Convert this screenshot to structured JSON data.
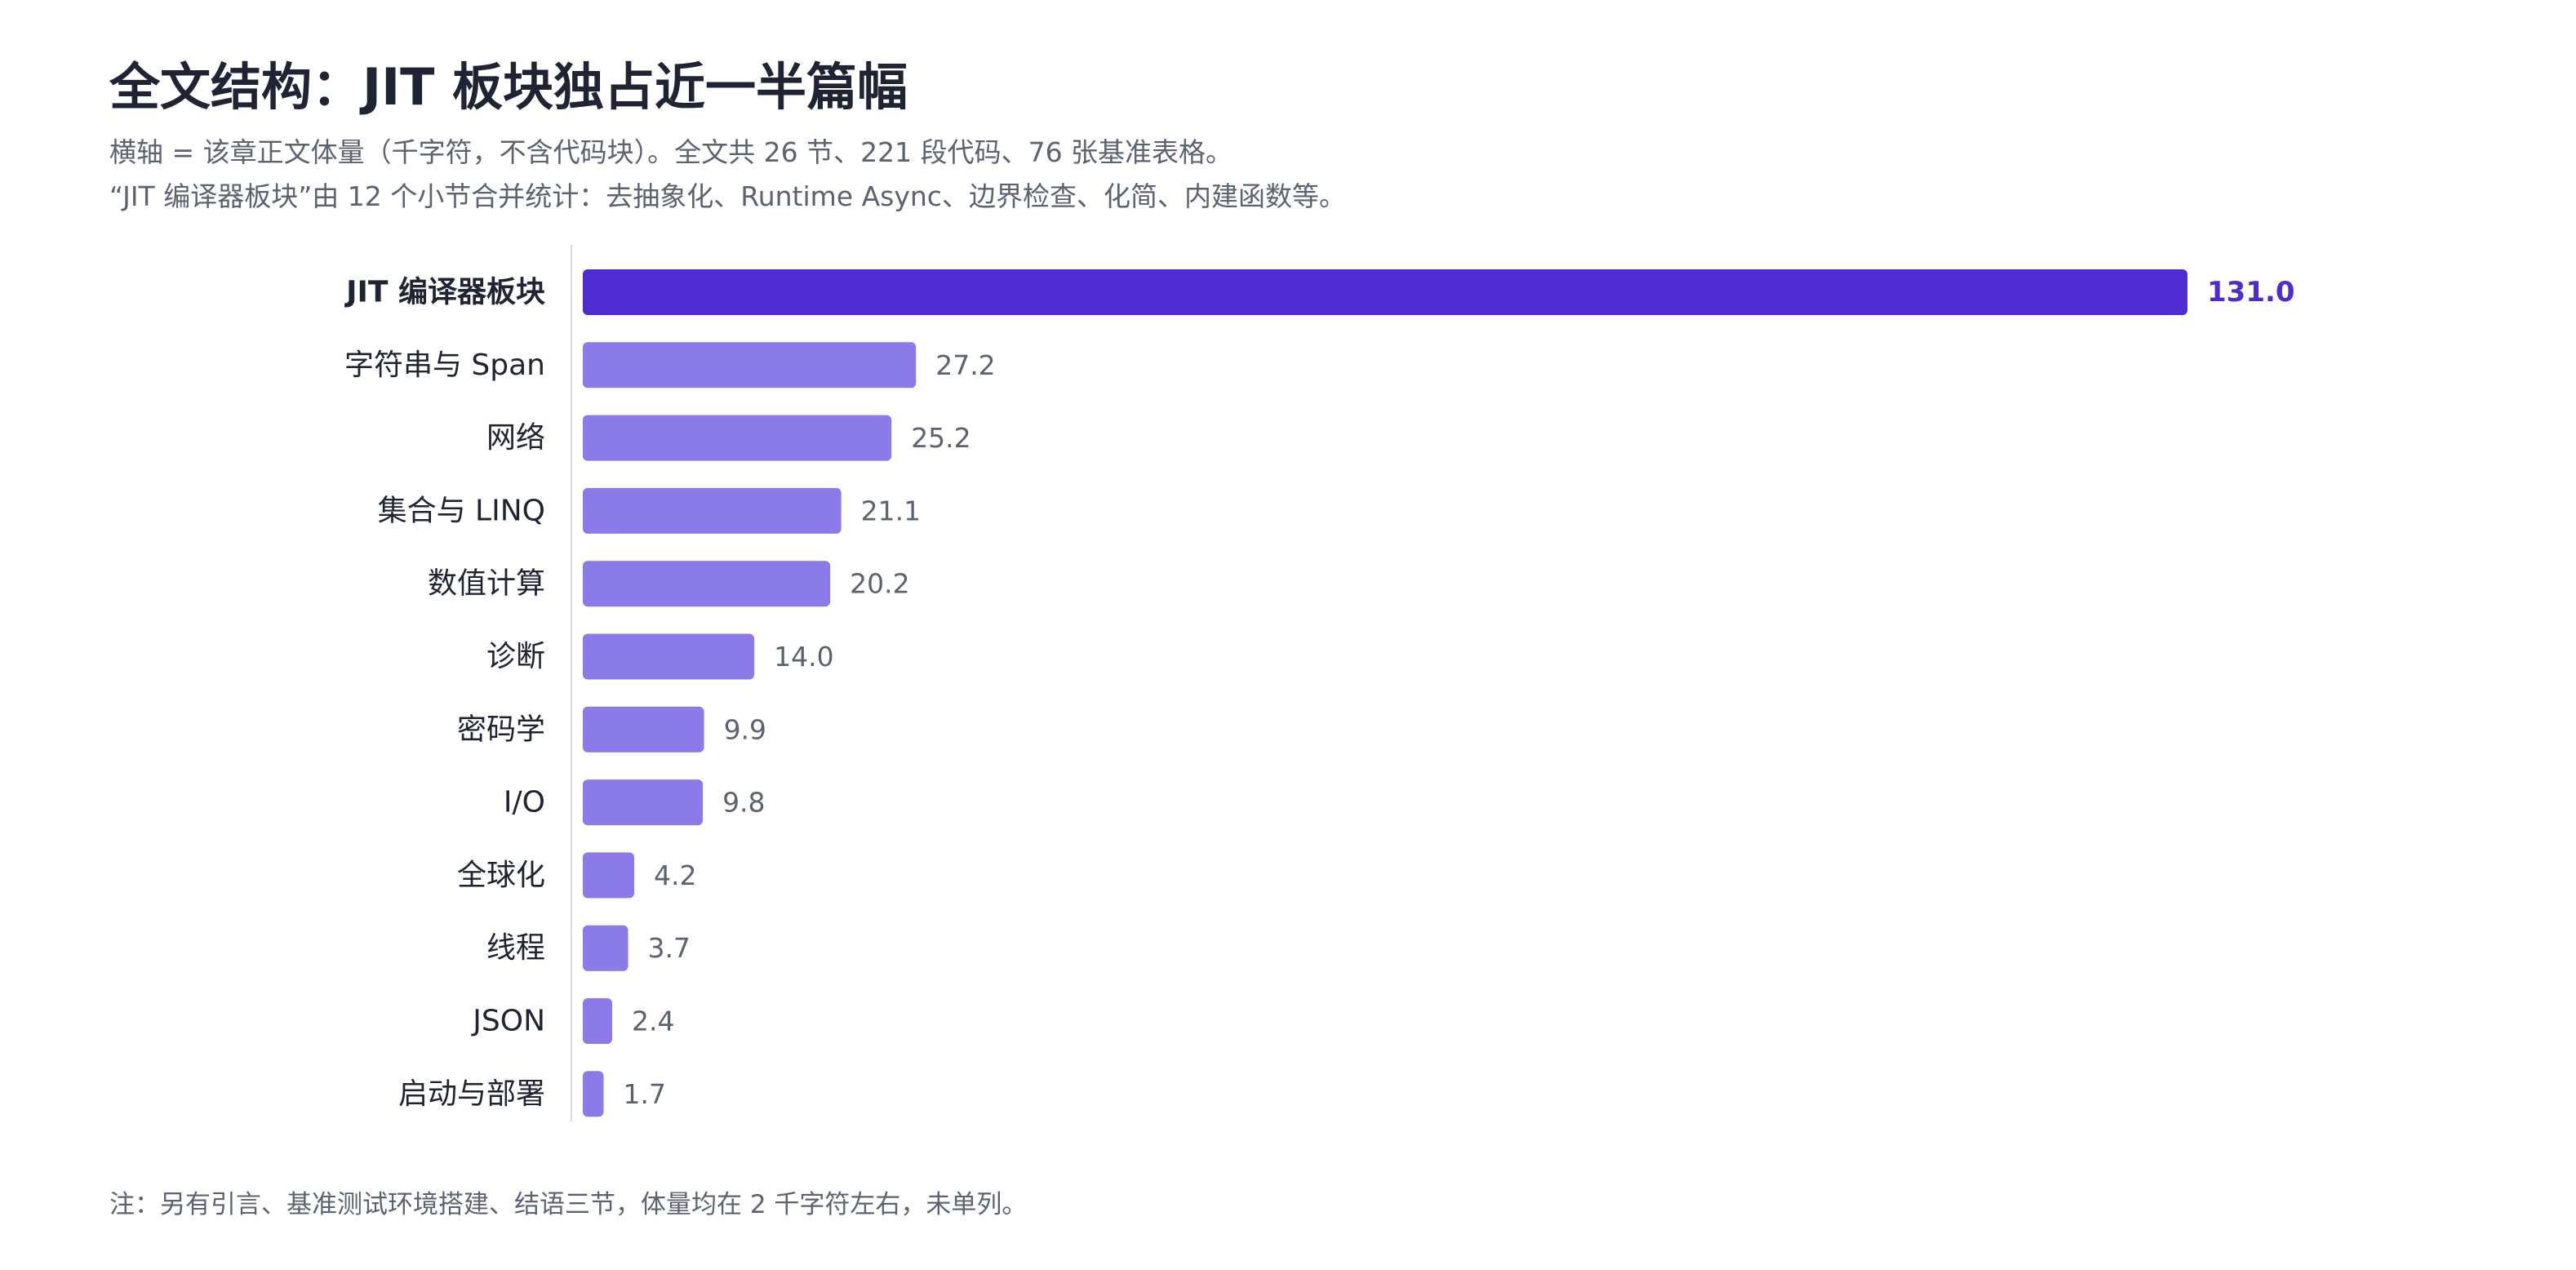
{
  "title": "全文结构：JIT 板块独占近一半篇幅",
  "subtitle_line1": "横轴 = 该章正文体量（千字符，不含代码块）。全文共 26 节、221 段代码、76 张基准表格。",
  "subtitle_line2": "“JIT 编译器板块”由 12 个小节合并统计：去抽象化、Runtime Async、边界检查、化简、内建函数等。",
  "note": "注：另有引言、基准测试环境搭建、结语三节，体量均在 2 千字符左右，未单列。",
  "colors": {
    "highlight": "#4f2bd2",
    "bar": "#8b7be9",
    "axis": "#d9dce1"
  },
  "chart_data": {
    "type": "bar",
    "orientation": "horizontal",
    "title": "全文结构：JIT 板块独占近一半篇幅",
    "xlabel": "",
    "ylabel": "",
    "grid": false,
    "xlim": [
      0,
      131.0
    ],
    "highlight_index": 0,
    "categories": [
      "JIT 编译器板块",
      "字符串与 Span",
      "网络",
      "集合与 LINQ",
      "数值计算",
      "诊断",
      "密码学",
      "I/O",
      "全球化",
      "线程",
      "JSON",
      "启动与部署"
    ],
    "values": [
      131.0,
      27.2,
      25.2,
      21.1,
      20.2,
      14.0,
      9.9,
      9.8,
      4.2,
      3.7,
      2.4,
      1.7
    ],
    "value_labels": [
      "131.0",
      "27.2",
      "25.2",
      "21.1",
      "20.2",
      "14.0",
      "9.9",
      "9.8",
      "4.2",
      "3.7",
      "2.4",
      "1.7"
    ]
  }
}
